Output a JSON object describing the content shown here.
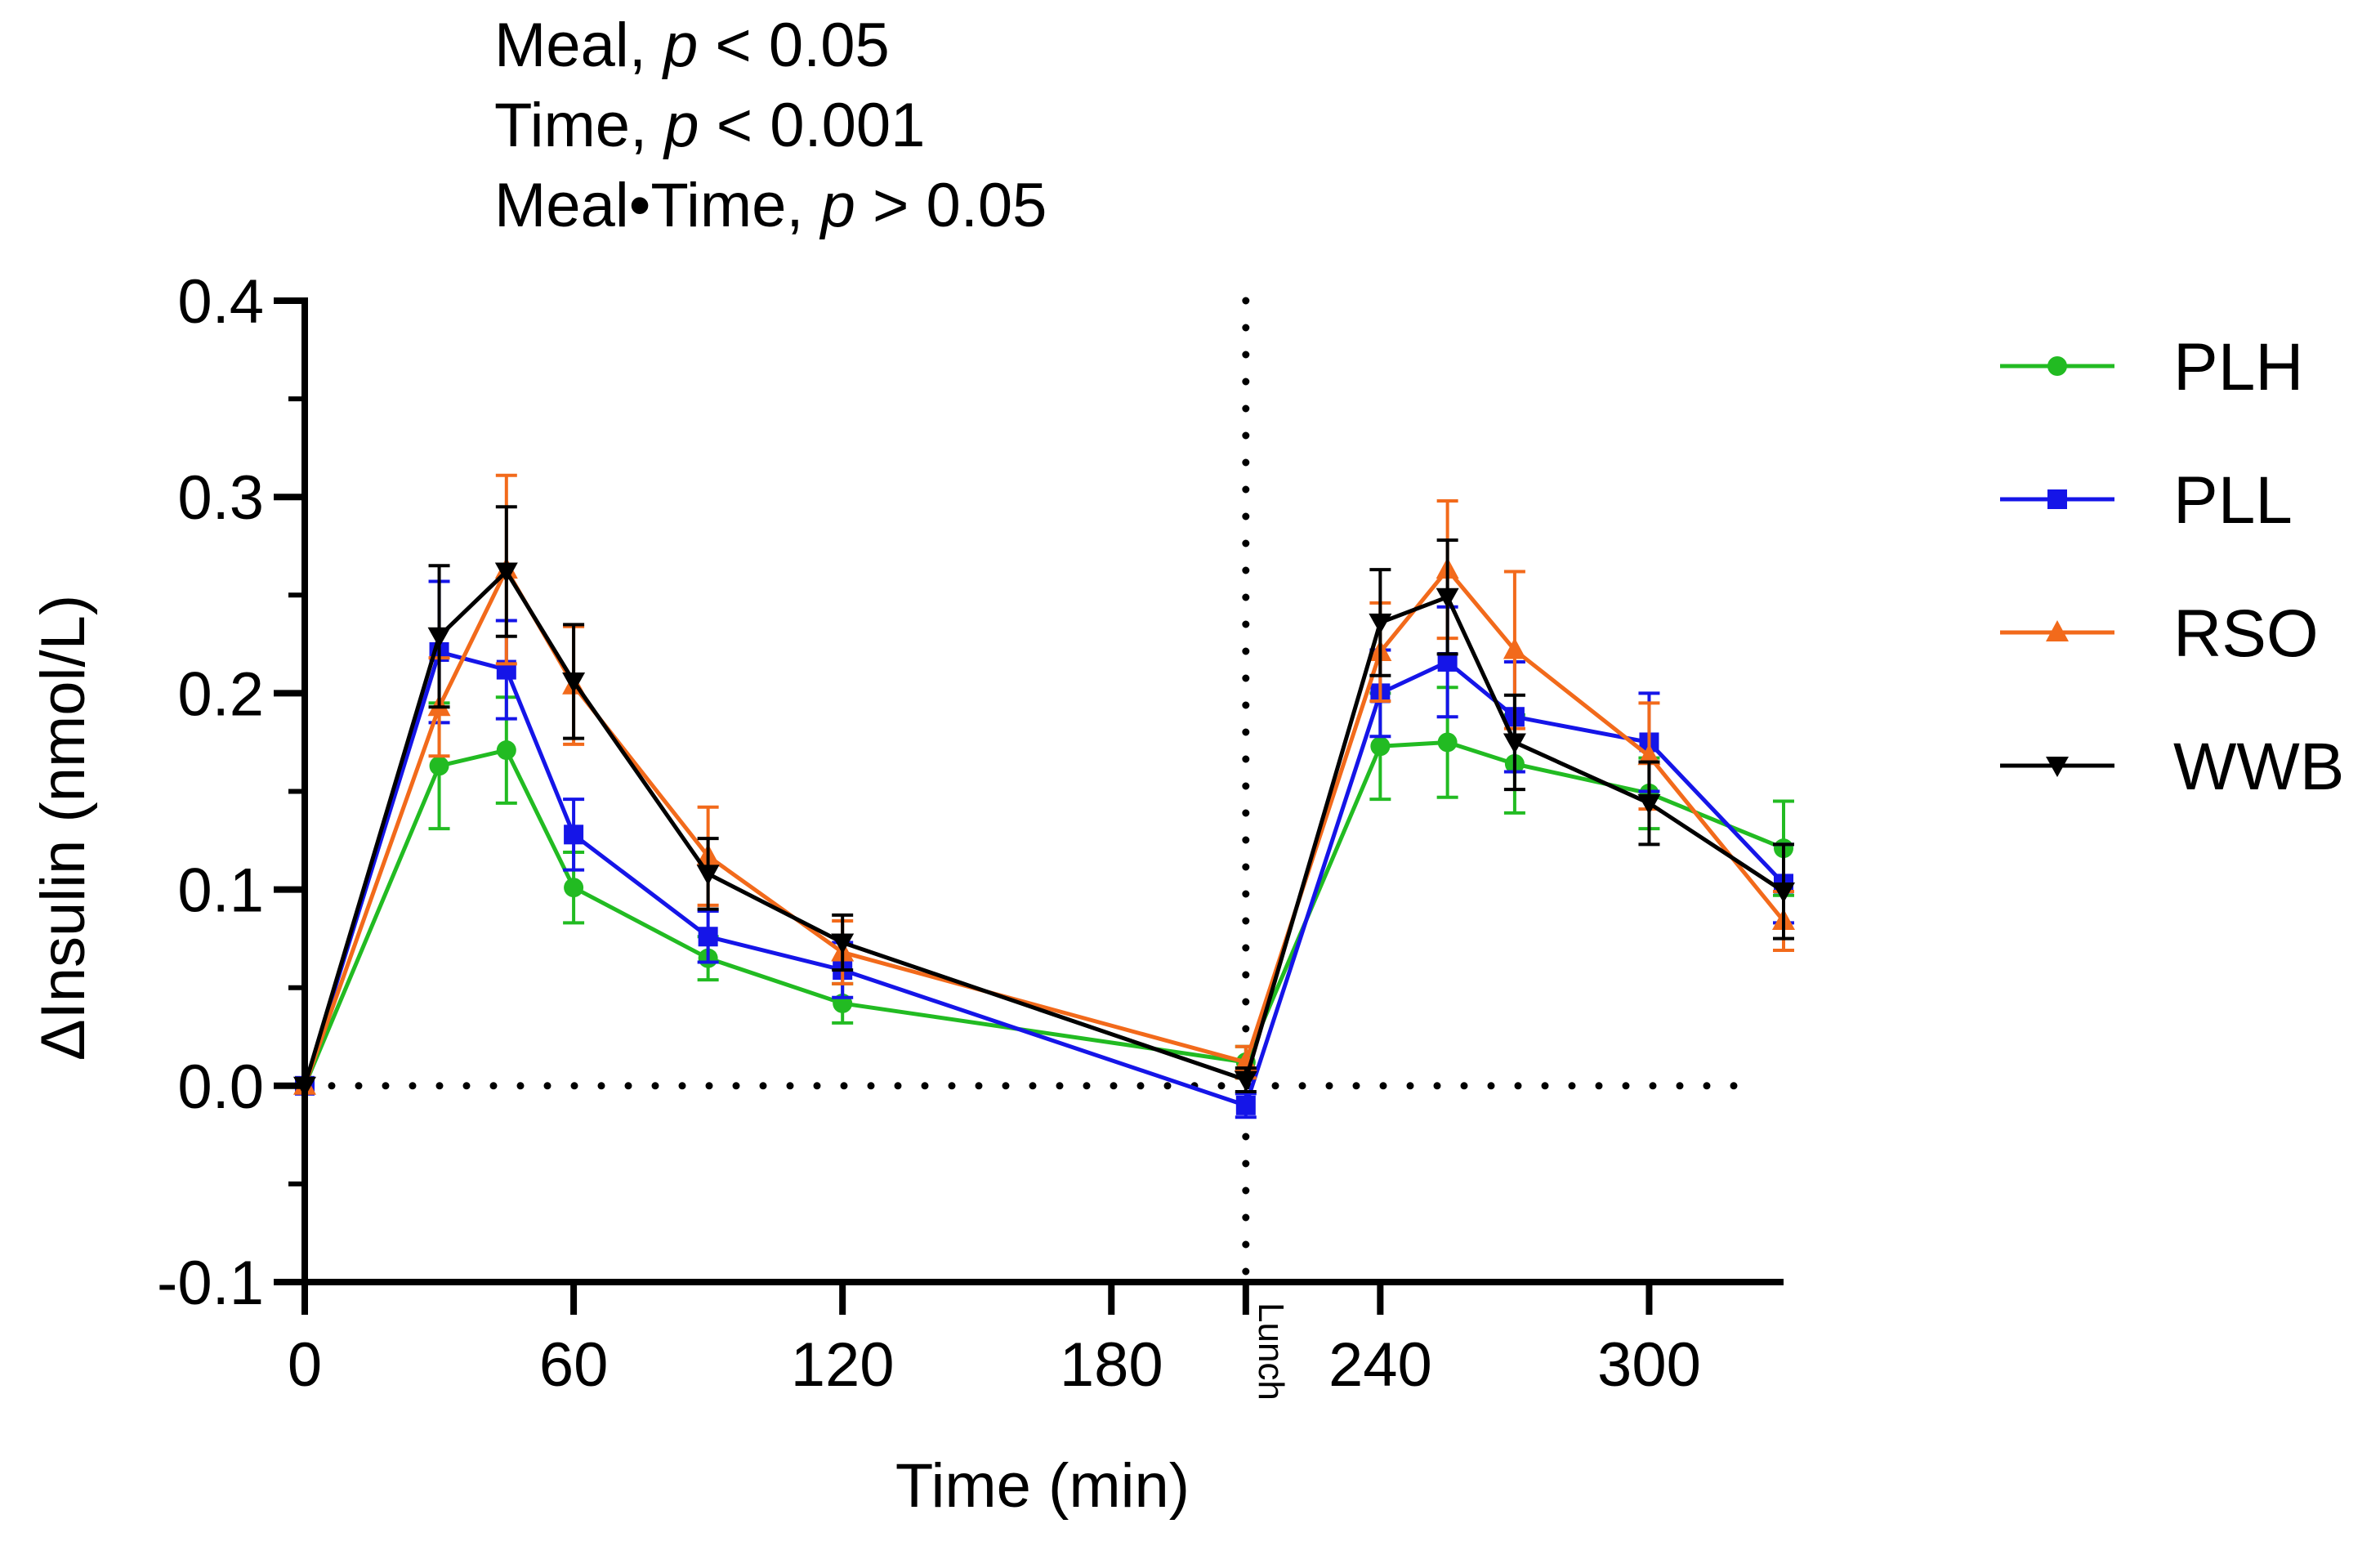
{
  "annotations": {
    "meal": {
      "label": "Meal, ",
      "p": "p",
      "rest": " < 0.05"
    },
    "time": {
      "label": "Time, ",
      "p": "p",
      "rest": " < 0.001"
    },
    "interaction": {
      "label": "Meal•Time, ",
      "p": "p",
      "rest": " > 0.05"
    }
  },
  "chart_data": {
    "type": "line",
    "title": "",
    "xlabel": "Time (min)",
    "ylabel": "ΔInsulin (nmol/L)",
    "xlim": [
      0,
      330
    ],
    "ylim": [
      -0.1,
      0.4
    ],
    "x_ticks": [
      0,
      60,
      120,
      180,
      240,
      300
    ],
    "x_tick_labels": [
      "0",
      "60",
      "120",
      "180",
      "240",
      "300"
    ],
    "y_ticks": [
      -0.1,
      0.0,
      0.1,
      0.2,
      0.3,
      0.4
    ],
    "y_tick_labels": [
      "-0.1",
      "0.0",
      "0.1",
      "0.2",
      "0.3",
      "0.4"
    ],
    "reference_lines": {
      "horizontal_y": 0.0,
      "vertical_x": 210,
      "vertical_label": "Lunch"
    },
    "legend_position": "right",
    "x": [
      0,
      30,
      45,
      60,
      90,
      120,
      210,
      240,
      255,
      270,
      300,
      330
    ],
    "series": [
      {
        "name": "PLH",
        "color": "#22bb22",
        "marker": "circle",
        "values": [
          0.0,
          0.163,
          0.171,
          0.101,
          0.065,
          0.042,
          0.012,
          0.173,
          0.175,
          0.164,
          0.149,
          0.121
        ],
        "errors": [
          0.0,
          0.032,
          0.027,
          0.018,
          0.011,
          0.01,
          0.008,
          0.027,
          0.028,
          0.025,
          0.018,
          0.024
        ]
      },
      {
        "name": "PLL",
        "color": "#1515e8",
        "marker": "square",
        "values": [
          0.0,
          0.221,
          0.212,
          0.128,
          0.076,
          0.059,
          -0.01,
          0.2,
          0.216,
          0.188,
          0.175,
          0.103
        ],
        "errors": [
          0.0,
          0.036,
          0.025,
          0.018,
          0.013,
          0.014,
          0.006,
          0.022,
          0.028,
          0.028,
          0.025,
          0.02
        ]
      },
      {
        "name": "RSO",
        "color": "#f26a1b",
        "marker": "triangle-up",
        "values": [
          0.0,
          0.193,
          0.263,
          0.204,
          0.117,
          0.068,
          0.012,
          0.221,
          0.263,
          0.222,
          0.168,
          0.084
        ],
        "errors": [
          0.0,
          0.025,
          0.048,
          0.03,
          0.025,
          0.016,
          0.008,
          0.025,
          0.035,
          0.04,
          0.027,
          0.015
        ]
      },
      {
        "name": "WWB",
        "color": "#000000",
        "marker": "triangle-down",
        "values": [
          0.0,
          0.229,
          0.262,
          0.206,
          0.108,
          0.073,
          0.003,
          0.236,
          0.249,
          0.175,
          0.144,
          0.099
        ],
        "errors": [
          0.0,
          0.036,
          0.033,
          0.029,
          0.018,
          0.014,
          0.006,
          0.027,
          0.029,
          0.024,
          0.021,
          0.024
        ]
      }
    ]
  }
}
